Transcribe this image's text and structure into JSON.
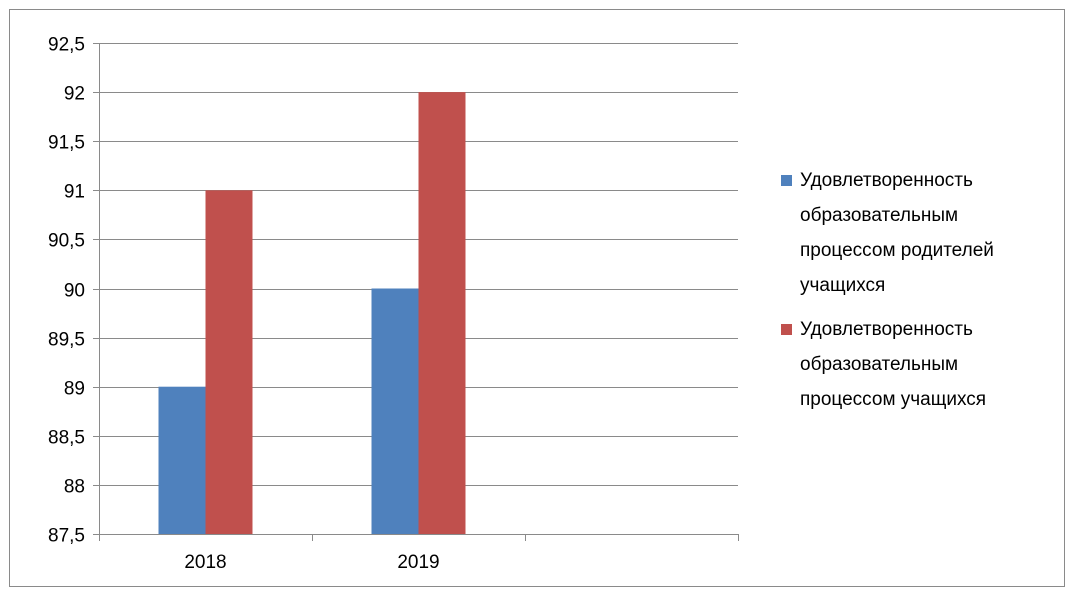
{
  "chart_data": {
    "type": "bar",
    "categories": [
      "2018",
      "2019",
      ""
    ],
    "series": [
      {
        "name": "Удовлетворенность образовательным процессом родителей учащихся",
        "values": [
          89,
          90,
          null
        ],
        "color": "#4f81bd"
      },
      {
        "name": "Удовлетворенность образовательным процессом учащихся",
        "values": [
          91,
          92,
          null
        ],
        "color": "#c0504d"
      }
    ],
    "y_ticks": [
      "87,5",
      "88",
      "88,5",
      "89",
      "89,5",
      "90",
      "90,5",
      "91",
      "91,5",
      "92",
      "92,5"
    ],
    "ylim": [
      87.5,
      92.5
    ],
    "y_step": 0.5,
    "grid": true,
    "legend_position": "right",
    "title": "",
    "xlabel": "",
    "ylabel": ""
  },
  "legend": {
    "items": [
      {
        "lines": [
          "Удовлетворенность",
          "образовательным",
          "процессом родителей",
          "учащихся"
        ],
        "color": "#4f81bd"
      },
      {
        "lines": [
          "Удовлетворенность",
          "образовательным",
          "процессом учащихся"
        ],
        "color": "#c0504d"
      }
    ]
  }
}
